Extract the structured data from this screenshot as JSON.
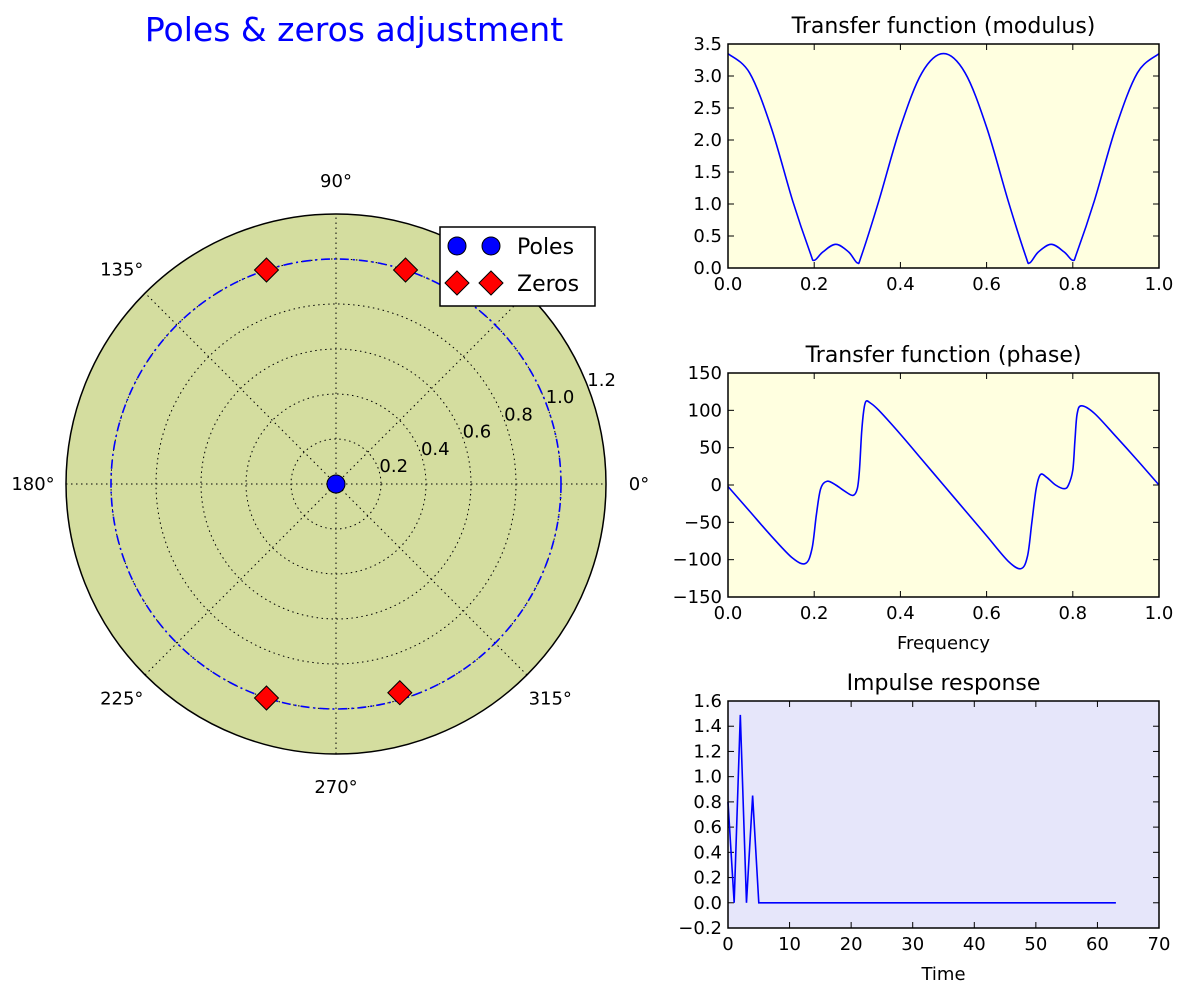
{
  "figure_title": "Poles & zeros adjustment",
  "chart_data": [
    {
      "type": "polar",
      "name": "pole-zero",
      "angle_ticks": [
        "0°",
        "90°",
        "135°",
        "180°",
        "225°",
        "270°",
        "315°"
      ],
      "radial_ticks": [
        "0.2",
        "0.4",
        "0.6",
        "0.8",
        "1.0",
        "1.2"
      ],
      "radial_tick_values": [
        0.2,
        0.4,
        0.6,
        0.8,
        1.0,
        1.2
      ],
      "rmax": 1.2,
      "unit_circle_radius": 1.0,
      "grid": true,
      "legend": {
        "position": "top-right",
        "entries": [
          {
            "label": "Poles",
            "marker": "circle",
            "color": "#0000ff"
          },
          {
            "label": "Zeros",
            "marker": "diamond",
            "color": "#ff0000"
          }
        ]
      },
      "poles": [
        {
          "r": 0.0,
          "theta_deg": 0
        }
      ],
      "zeros": [
        {
          "r": 1.0,
          "theta_deg": 72
        },
        {
          "r": 1.0,
          "theta_deg": 108
        },
        {
          "r": 1.0,
          "theta_deg": 252
        },
        {
          "r": 0.97,
          "theta_deg": 287
        }
      ],
      "colors": {
        "background": "#d4dd9f",
        "unit_circle": "#0000ff"
      }
    },
    {
      "type": "line",
      "name": "modulus",
      "title": "Transfer function (modulus)",
      "xlabel": "",
      "ylabel": "",
      "xlim": [
        0.0,
        1.0
      ],
      "ylim": [
        0.0,
        3.5
      ],
      "xticks": [
        "0.0",
        "0.2",
        "0.4",
        "0.6",
        "0.8",
        "1.0"
      ],
      "yticks": [
        "0.0",
        "0.5",
        "1.0",
        "1.5",
        "2.0",
        "2.5",
        "3.0",
        "3.5"
      ],
      "colors": {
        "background": "#ffffe0",
        "line": "#0000ff"
      },
      "x": [
        0.0,
        0.05,
        0.1,
        0.15,
        0.19,
        0.2,
        0.22,
        0.25,
        0.28,
        0.3,
        0.31,
        0.35,
        0.4,
        0.45,
        0.5,
        0.55,
        0.6,
        0.65,
        0.69,
        0.7,
        0.72,
        0.75,
        0.78,
        0.8,
        0.81,
        0.85,
        0.9,
        0.95,
        1.0
      ],
      "y": [
        3.35,
        3.05,
        2.2,
        1.05,
        0.25,
        0.12,
        0.25,
        0.37,
        0.25,
        0.08,
        0.2,
        1.05,
        2.2,
        3.05,
        3.35,
        3.05,
        2.2,
        1.05,
        0.2,
        0.08,
        0.25,
        0.37,
        0.25,
        0.12,
        0.25,
        1.05,
        2.2,
        3.05,
        3.35
      ]
    },
    {
      "type": "line",
      "name": "phase",
      "title": "Transfer function (phase)",
      "xlabel": "Frequency",
      "ylabel": "",
      "xlim": [
        0.0,
        1.0
      ],
      "ylim": [
        -150,
        150
      ],
      "xticks": [
        "0.0",
        "0.2",
        "0.4",
        "0.6",
        "0.8",
        "1.0"
      ],
      "yticks": [
        "−150",
        "−100",
        "−50",
        "0",
        "50",
        "100",
        "150"
      ],
      "colors": {
        "background": "#ffffe0",
        "line": "#0000ff"
      },
      "x": [
        0.0,
        0.05,
        0.1,
        0.15,
        0.18,
        0.195,
        0.205,
        0.215,
        0.23,
        0.25,
        0.27,
        0.29,
        0.3,
        0.305,
        0.31,
        0.315,
        0.32,
        0.33,
        0.35,
        0.4,
        0.45,
        0.5,
        0.55,
        0.6,
        0.65,
        0.68,
        0.695,
        0.705,
        0.715,
        0.725,
        0.74,
        0.76,
        0.78,
        0.79,
        0.8,
        0.805,
        0.81,
        0.82,
        0.85,
        0.9,
        0.95,
        1.0
      ],
      "y": [
        -2,
        -35,
        -68,
        -98,
        -105,
        -85,
        -40,
        -5,
        5,
        0,
        -8,
        -14,
        -5,
        20,
        70,
        100,
        112,
        110,
        100,
        68,
        34,
        0,
        -34,
        -68,
        -102,
        -112,
        -95,
        -50,
        -5,
        14,
        10,
        0,
        -5,
        0,
        20,
        60,
        95,
        106,
        96,
        65,
        33,
        0
      ]
    },
    {
      "type": "line",
      "name": "impulse",
      "title": "Impulse response",
      "xlabel": "Time",
      "ylabel": "",
      "xlim": [
        0,
        70
      ],
      "ylim": [
        -0.2,
        1.6
      ],
      "xticks": [
        "0",
        "10",
        "20",
        "30",
        "40",
        "50",
        "60",
        "70"
      ],
      "yticks": [
        "−0.2",
        "0.0",
        "0.2",
        "0.4",
        "0.6",
        "0.8",
        "1.0",
        "1.2",
        "1.4",
        "1.6"
      ],
      "colors": {
        "background": "#e6e6fa",
        "line": "#0000ff"
      },
      "x": [
        0,
        1,
        2,
        3,
        4,
        5,
        6,
        63
      ],
      "y": [
        0.8,
        0.0,
        1.49,
        0.0,
        0.85,
        0.0,
        0.0,
        0.0
      ]
    }
  ]
}
